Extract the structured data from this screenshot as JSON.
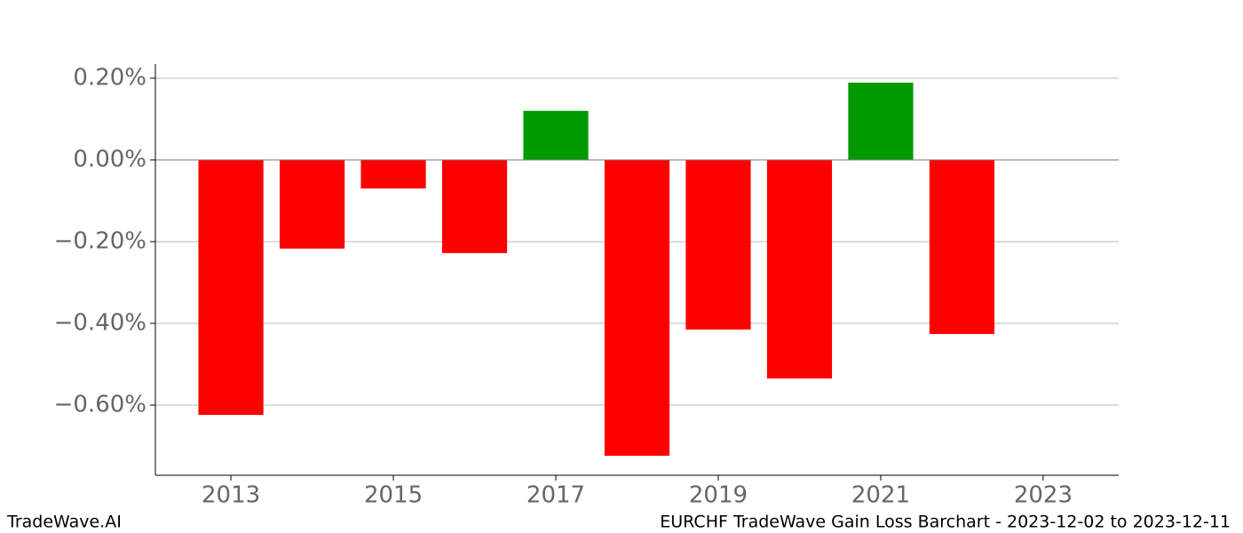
{
  "chart_data": {
    "type": "bar",
    "x": [
      2013,
      2014,
      2015,
      2016,
      2017,
      2018,
      2019,
      2020,
      2021,
      2022
    ],
    "values": [
      -0.624,
      -0.217,
      -0.07,
      -0.228,
      0.12,
      -0.724,
      -0.415,
      -0.535,
      0.189,
      -0.426
    ],
    "colors": [
      "#ff0000",
      "#ff0000",
      "#ff0000",
      "#ff0000",
      "#009900",
      "#ff0000",
      "#ff0000",
      "#ff0000",
      "#009900",
      "#ff0000"
    ],
    "xlim": [
      2012.07,
      2023.93
    ],
    "xticks": [
      2013,
      2015,
      2017,
      2019,
      2021,
      2023
    ],
    "ylim": [
      -0.7717,
      0.2348
    ],
    "yticks": [
      {
        "value": -0.6,
        "label": "−0.60%"
      },
      {
        "value": -0.4,
        "label": "−0.40%"
      },
      {
        "value": -0.2,
        "label": "−0.20%"
      },
      {
        "value": 0,
        "label": "0.00%"
      },
      {
        "value": 0.2,
        "label": "0.20%"
      }
    ],
    "grid": true,
    "footer_left": "TradeWave.AI",
    "footer_right": "EURCHF TradeWave Gain Loss Barchart - 2023-12-02 to 2023-12-11"
  }
}
